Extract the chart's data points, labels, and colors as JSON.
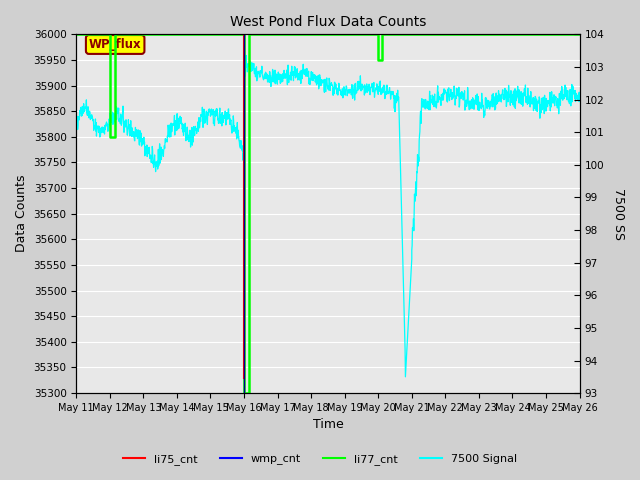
{
  "title": "West Pond Flux Data Counts",
  "xlabel": "Time",
  "ylabel_left": "Data Counts",
  "ylabel_right": "7500 SS",
  "ylim_left": [
    35300,
    36000
  ],
  "ylim_right": [
    93.0,
    104.0
  ],
  "background_color": "#d0d0d0",
  "plot_bg_color": "#e8e8e8",
  "annotation_text": "WP_flux",
  "x_tick_labels": [
    "May 11",
    "May 12",
    "May 13",
    "May 14",
    "May 15",
    "May 16",
    "May 17",
    "May 18",
    "May 19",
    "May 20",
    "May 21",
    "May 22",
    "May 23",
    "May 24",
    "May 25",
    "May 26"
  ],
  "legend_labels": [
    "li75_cnt",
    "wmp_cnt",
    "li77_cnt",
    "7500 Signal"
  ],
  "legend_colors": [
    "red",
    "blue",
    "green",
    "cyan"
  ]
}
